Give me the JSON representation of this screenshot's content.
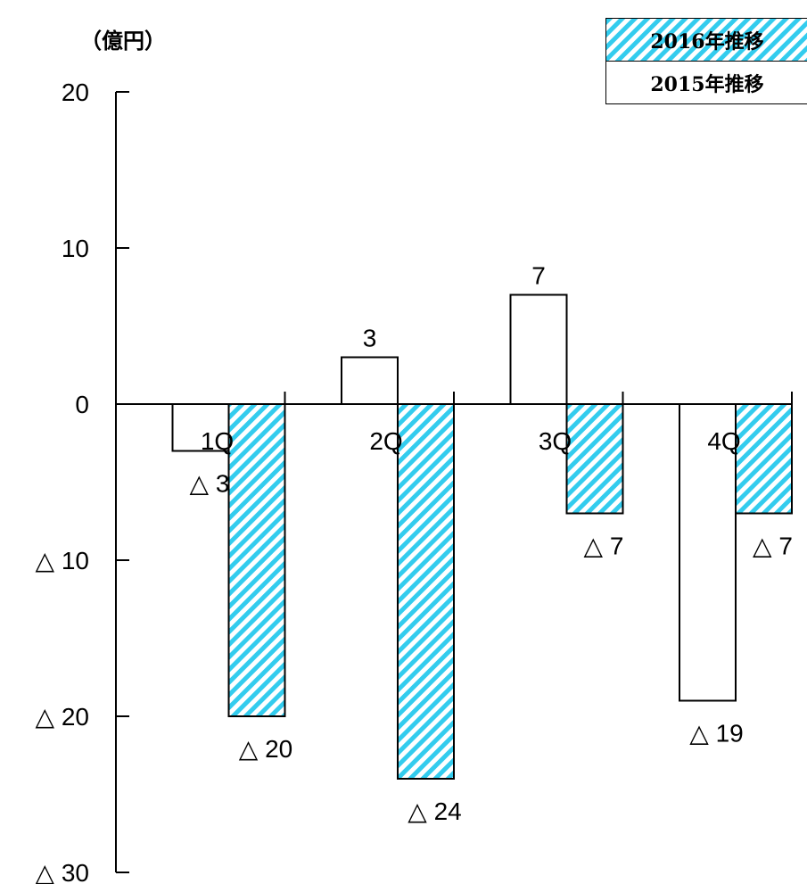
{
  "unit_label": "（億円）",
  "legend": {
    "series_2016": "2016年推移",
    "series_2015": "2015年推移"
  },
  "colors": {
    "hatch_fill": "#33CCEE",
    "hatch_bg": "#ffffff",
    "bar_2015": "#ffffff",
    "stroke": "#000000"
  },
  "chart_data": {
    "type": "bar",
    "categories": [
      "1Q",
      "2Q",
      "3Q",
      "4Q"
    ],
    "series": [
      {
        "name": "2015年推移",
        "values": [
          -3,
          3,
          7,
          -19
        ],
        "labels": [
          "△ 3",
          "3",
          "7",
          "△ 19"
        ]
      },
      {
        "name": "2016年推移",
        "values": [
          -20,
          -24,
          -7,
          -7
        ],
        "labels": [
          "△ 20",
          "△ 24",
          "△ 7",
          "△ 7"
        ]
      }
    ],
    "ylim": [
      -30,
      20
    ],
    "yticks": [
      20,
      10,
      0,
      -10,
      -20,
      -30
    ],
    "ytick_labels": [
      "20",
      "10",
      "0",
      "△ 10",
      "△ 20",
      "△ 30"
    ],
    "ylabel": "（億円）",
    "grid": false,
    "legend_position": "top-right"
  }
}
